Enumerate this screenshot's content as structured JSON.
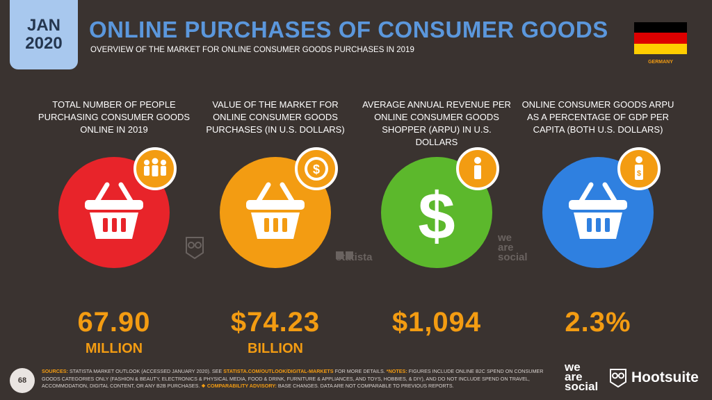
{
  "header": {
    "month": "JAN",
    "year": "2020",
    "title": "ONLINE PURCHASES OF CONSUMER GOODS",
    "subtitle": "OVERVIEW OF THE MARKET FOR ONLINE CONSUMER GOODS PURCHASES IN 2019",
    "country": "GERMANY",
    "flag_colors": [
      "#000000",
      "#dd0000",
      "#ffce00"
    ]
  },
  "metrics": [
    {
      "label": "TOTAL NUMBER OF PEOPLE PURCHASING CONSUMER GOODS ONLINE IN 2019",
      "value": "67.90",
      "unit": "MILLION",
      "color": "#e8242a",
      "icon": "basket-icon",
      "badge_icon": "people-icon"
    },
    {
      "label": "VALUE OF THE MARKET FOR ONLINE CONSUMER GOODS PURCHASES (IN U.S. DOLLARS)",
      "value": "$74.23",
      "unit": "BILLION",
      "color": "#f39c12",
      "icon": "basket-icon",
      "badge_icon": "dollar-seal-icon"
    },
    {
      "label": "AVERAGE ANNUAL REVENUE PER ONLINE CONSUMER GOODS SHOPPER (ARPU) IN U.S. DOLLARS",
      "value": "$1,094",
      "unit": "",
      "color": "#5cb82c",
      "icon": "dollar-icon",
      "badge_icon": "person-icon"
    },
    {
      "label": "ONLINE CONSUMER GOODS ARPU AS A PERCENTAGE OF GDP PER CAPITA (BOTH U.S. DOLLARS)",
      "value": "2.3%",
      "unit": "",
      "color": "#2f80e0",
      "icon": "basket-icon",
      "badge_icon": "person-dollar-icon"
    }
  ],
  "watermarks": {
    "statista": "statista",
    "we": "we",
    "are": "are",
    "social": "social"
  },
  "footer": {
    "page_number": "68",
    "sources_label": "SOURCES:",
    "sources_text_1": "STATISTA MARKET OUTLOOK (ACCESSED JANUARY 2020). SEE",
    "sources_link": "STATISTA.COM/OUTLOOK/DIGITAL-MARKETS",
    "sources_text_2": "FOR MORE DETAILS.",
    "notes_label": "*NOTES:",
    "notes_text": "FIGURES INCLUDE ONLINE B2C SPEND ON CONSUMER GOODS CATEGORIES ONLY (FASHION & BEAUTY, ELECTRONICS & PHYSICAL MEDIA, FOOD & DRINK, FURNITURE & APPLIANCES, AND TOYS, HOBBIES, & DIY), AND DO NOT INCLUDE SPEND ON TRAVEL, ACCOMMODATION, DIGITAL CONTENT, OR ANY B2B PURCHASES.",
    "advisory_label": "❖ COMPARABILITY ADVISORY:",
    "advisory_text": "BASE CHANGES. DATA ARE NOT COMPARABLE TO PREVIOUS REPORTS.",
    "brand_we": "we",
    "brand_are": "are",
    "brand_social": "social",
    "brand_hootsuite": "Hootsuite"
  }
}
